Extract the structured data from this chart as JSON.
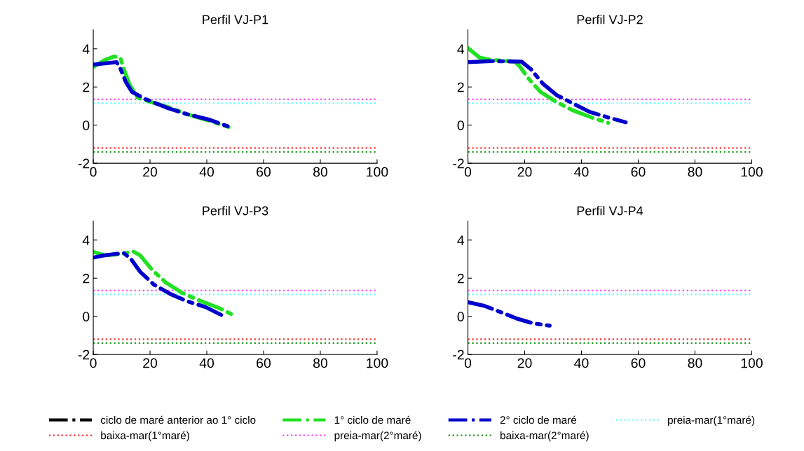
{
  "chart_data": [
    {
      "type": "line",
      "title": "Perfil VJ-P1",
      "xlim": [
        0,
        100
      ],
      "ylim": [
        -2,
        5
      ],
      "xticks": [
        0,
        20,
        40,
        60,
        80,
        100
      ],
      "yticks": [
        -2,
        0,
        2,
        4
      ],
      "line_style": "dashdot",
      "marker": "none",
      "legend": "bottom",
      "series": [
        {
          "name": "ciclo de maré anterior ao 1° ciclo",
          "color": "#000000"
        },
        {
          "name": "1° ciclo de maré",
          "color": "#22e022",
          "x": [
            0,
            4.1,
            7.4,
            9.5,
            11.1,
            12.8,
            15.6,
            20.6,
            26.3,
            32.9,
            41.2,
            47.7
          ],
          "values": [
            3.05,
            3.42,
            3.6,
            3.54,
            2.8,
            2.12,
            1.44,
            1.2,
            0.95,
            0.58,
            0.21,
            -0.1
          ]
        },
        {
          "name": "2° ciclo de maré",
          "color": "#0000cc",
          "x": [
            0,
            8.2,
            9.5,
            11.5,
            13.6,
            18.1,
            26.3,
            32.9,
            41.2,
            48.1
          ],
          "values": [
            3.17,
            3.3,
            2.99,
            2.25,
            1.75,
            1.38,
            0.89,
            0.58,
            0.27,
            -0.1
          ]
        }
      ],
      "ref_lines": [
        {
          "axis": "y",
          "value": 1.15,
          "label": "preia-mar(1°maré)",
          "color": "#66ffff",
          "line_style": "dotted"
        },
        {
          "axis": "y",
          "value": -1.2,
          "label": "baixa-mar(1°maré)",
          "color": "#ff3333",
          "line_style": "dotted"
        },
        {
          "axis": "y",
          "value": 1.35,
          "label": "preia-mar(2°maré)",
          "color": "#ff44ff",
          "line_style": "dotted"
        },
        {
          "axis": "y",
          "value": -1.4,
          "label": "baixa-mar(2°maré)",
          "color": "#229922",
          "line_style": "dotted"
        }
      ]
    },
    {
      "type": "line",
      "title": "Perfil VJ-P2",
      "xlim": [
        0,
        100
      ],
      "ylim": [
        -2,
        5
      ],
      "xticks": [
        0,
        20,
        40,
        60,
        80,
        100
      ],
      "yticks": [
        -2,
        0,
        2,
        4
      ],
      "line_style": "dashdot",
      "marker": "none",
      "series": [
        {
          "color": "#22e022",
          "x": [
            0,
            4.1,
            8.2,
            16.5,
            18.1,
            21.4,
            25.5,
            31.3,
            37,
            43.6,
            49.4
          ],
          "values": [
            4.04,
            3.54,
            3.42,
            3.33,
            3.11,
            2.43,
            1.75,
            1.2,
            0.77,
            0.4,
            0.12
          ]
        },
        {
          "color": "#0000cc",
          "x": [
            0,
            8.2,
            18.9,
            22.2,
            26.3,
            31.3,
            37,
            42.8,
            49.4,
            55.6
          ],
          "values": [
            3.3,
            3.36,
            3.33,
            2.93,
            2.19,
            1.57,
            1.14,
            0.7,
            0.4,
            0.15
          ]
        }
      ],
      "ref_lines": [
        {
          "axis": "y",
          "value": 1.15,
          "color": "#66ffff",
          "line_style": "dotted"
        },
        {
          "axis": "y",
          "value": -1.2,
          "color": "#ff3333",
          "line_style": "dotted"
        },
        {
          "axis": "y",
          "value": 1.35,
          "color": "#ff44ff",
          "line_style": "dotted"
        },
        {
          "axis": "y",
          "value": -1.4,
          "color": "#229922",
          "line_style": "dotted"
        }
      ]
    },
    {
      "type": "line",
      "title": "Perfil VJ-P3",
      "xlim": [
        0,
        100
      ],
      "ylim": [
        -2,
        5
      ],
      "xticks": [
        0,
        20,
        40,
        60,
        80,
        100
      ],
      "yticks": [
        -2,
        0,
        2,
        4
      ],
      "line_style": "dashdot",
      "marker": "none",
      "series": [
        {
          "color": "#22e022",
          "x": [
            0,
            4.1,
            9.9,
            14,
            16.5,
            20.6,
            25.5,
            31.3,
            37.9,
            44.4,
            49.4
          ],
          "values": [
            3.38,
            3.2,
            3.26,
            3.41,
            3.2,
            2.46,
            1.78,
            1.23,
            0.8,
            0.43,
            0.06
          ]
        },
        {
          "color": "#0000cc",
          "x": [
            0,
            4.1,
            10.7,
            13.2,
            16.5,
            21.4,
            27.2,
            32.9,
            39.5,
            46.9
          ],
          "values": [
            3.08,
            3.2,
            3.32,
            3.02,
            2.34,
            1.66,
            1.17,
            0.8,
            0.49,
            -0.06
          ]
        }
      ],
      "ref_lines": [
        {
          "axis": "y",
          "value": 1.15,
          "color": "#66ffff",
          "line_style": "dotted"
        },
        {
          "axis": "y",
          "value": -1.2,
          "color": "#ff3333",
          "line_style": "dotted"
        },
        {
          "axis": "y",
          "value": 1.35,
          "color": "#ff44ff",
          "line_style": "dotted"
        },
        {
          "axis": "y",
          "value": -1.4,
          "color": "#229922",
          "line_style": "dotted"
        }
      ]
    },
    {
      "type": "line",
      "title": "Perfil VJ-P4",
      "xlim": [
        0,
        100
      ],
      "ylim": [
        -2,
        5
      ],
      "xticks": [
        0,
        20,
        40,
        60,
        80,
        100
      ],
      "yticks": [
        -2,
        0,
        2,
        4
      ],
      "line_style": "dashdot",
      "marker": "none",
      "series": [
        {
          "color": "#0000cc",
          "x": [
            0,
            5.8,
            12.3,
            17.3,
            23,
            28.8
          ],
          "values": [
            0.74,
            0.55,
            0.18,
            -0.12,
            -0.37,
            -0.49
          ]
        }
      ],
      "ref_lines": [
        {
          "axis": "y",
          "value": 1.15,
          "color": "#66ffff",
          "line_style": "dotted"
        },
        {
          "axis": "y",
          "value": -1.2,
          "color": "#ff3333",
          "line_style": "dotted"
        },
        {
          "axis": "y",
          "value": 1.35,
          "color": "#ff44ff",
          "line_style": "dotted"
        },
        {
          "axis": "y",
          "value": -1.4,
          "color": "#229922",
          "line_style": "dotted"
        }
      ]
    }
  ]
}
